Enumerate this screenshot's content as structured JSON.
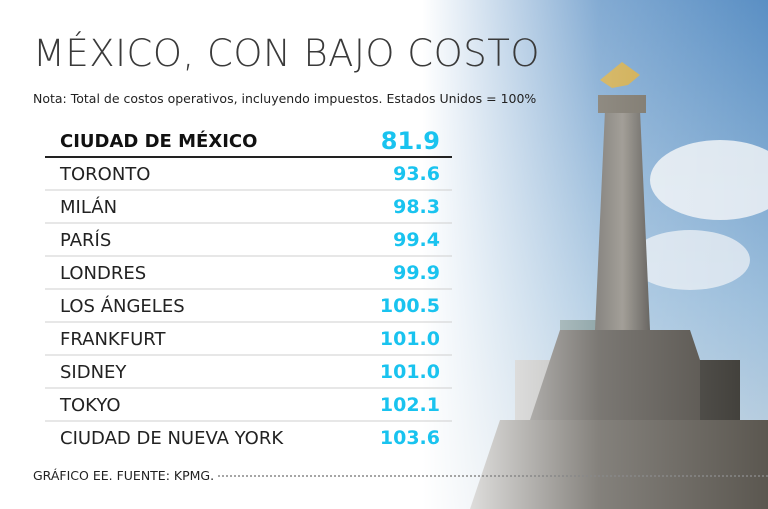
{
  "header": {
    "title": "MÉXICO, CON BAJO COSTO",
    "note": "Nota: Total de costos operativos, incluyendo impuestos. Estados Unidos = 100%"
  },
  "table": {
    "rows": [
      [
        "CIUDAD DE MÉXICO",
        "81.9"
      ],
      [
        "TORONTO",
        "93.6"
      ],
      [
        "MILÁN",
        "98.3"
      ],
      [
        "PARÍS",
        "99.4"
      ],
      [
        "LONDRES",
        "99.9"
      ],
      [
        "LOS ÁNGELES",
        "100.5"
      ],
      [
        "FRANKFURT",
        "101.0"
      ],
      [
        "SIDNEY",
        "101.0"
      ],
      [
        "TOKYO",
        "102.1"
      ],
      [
        "CIUDAD DE NUEVA YORK",
        "103.6"
      ]
    ]
  },
  "footer": {
    "source": "GRÁFICO EE. FUENTE: KPMG."
  }
}
